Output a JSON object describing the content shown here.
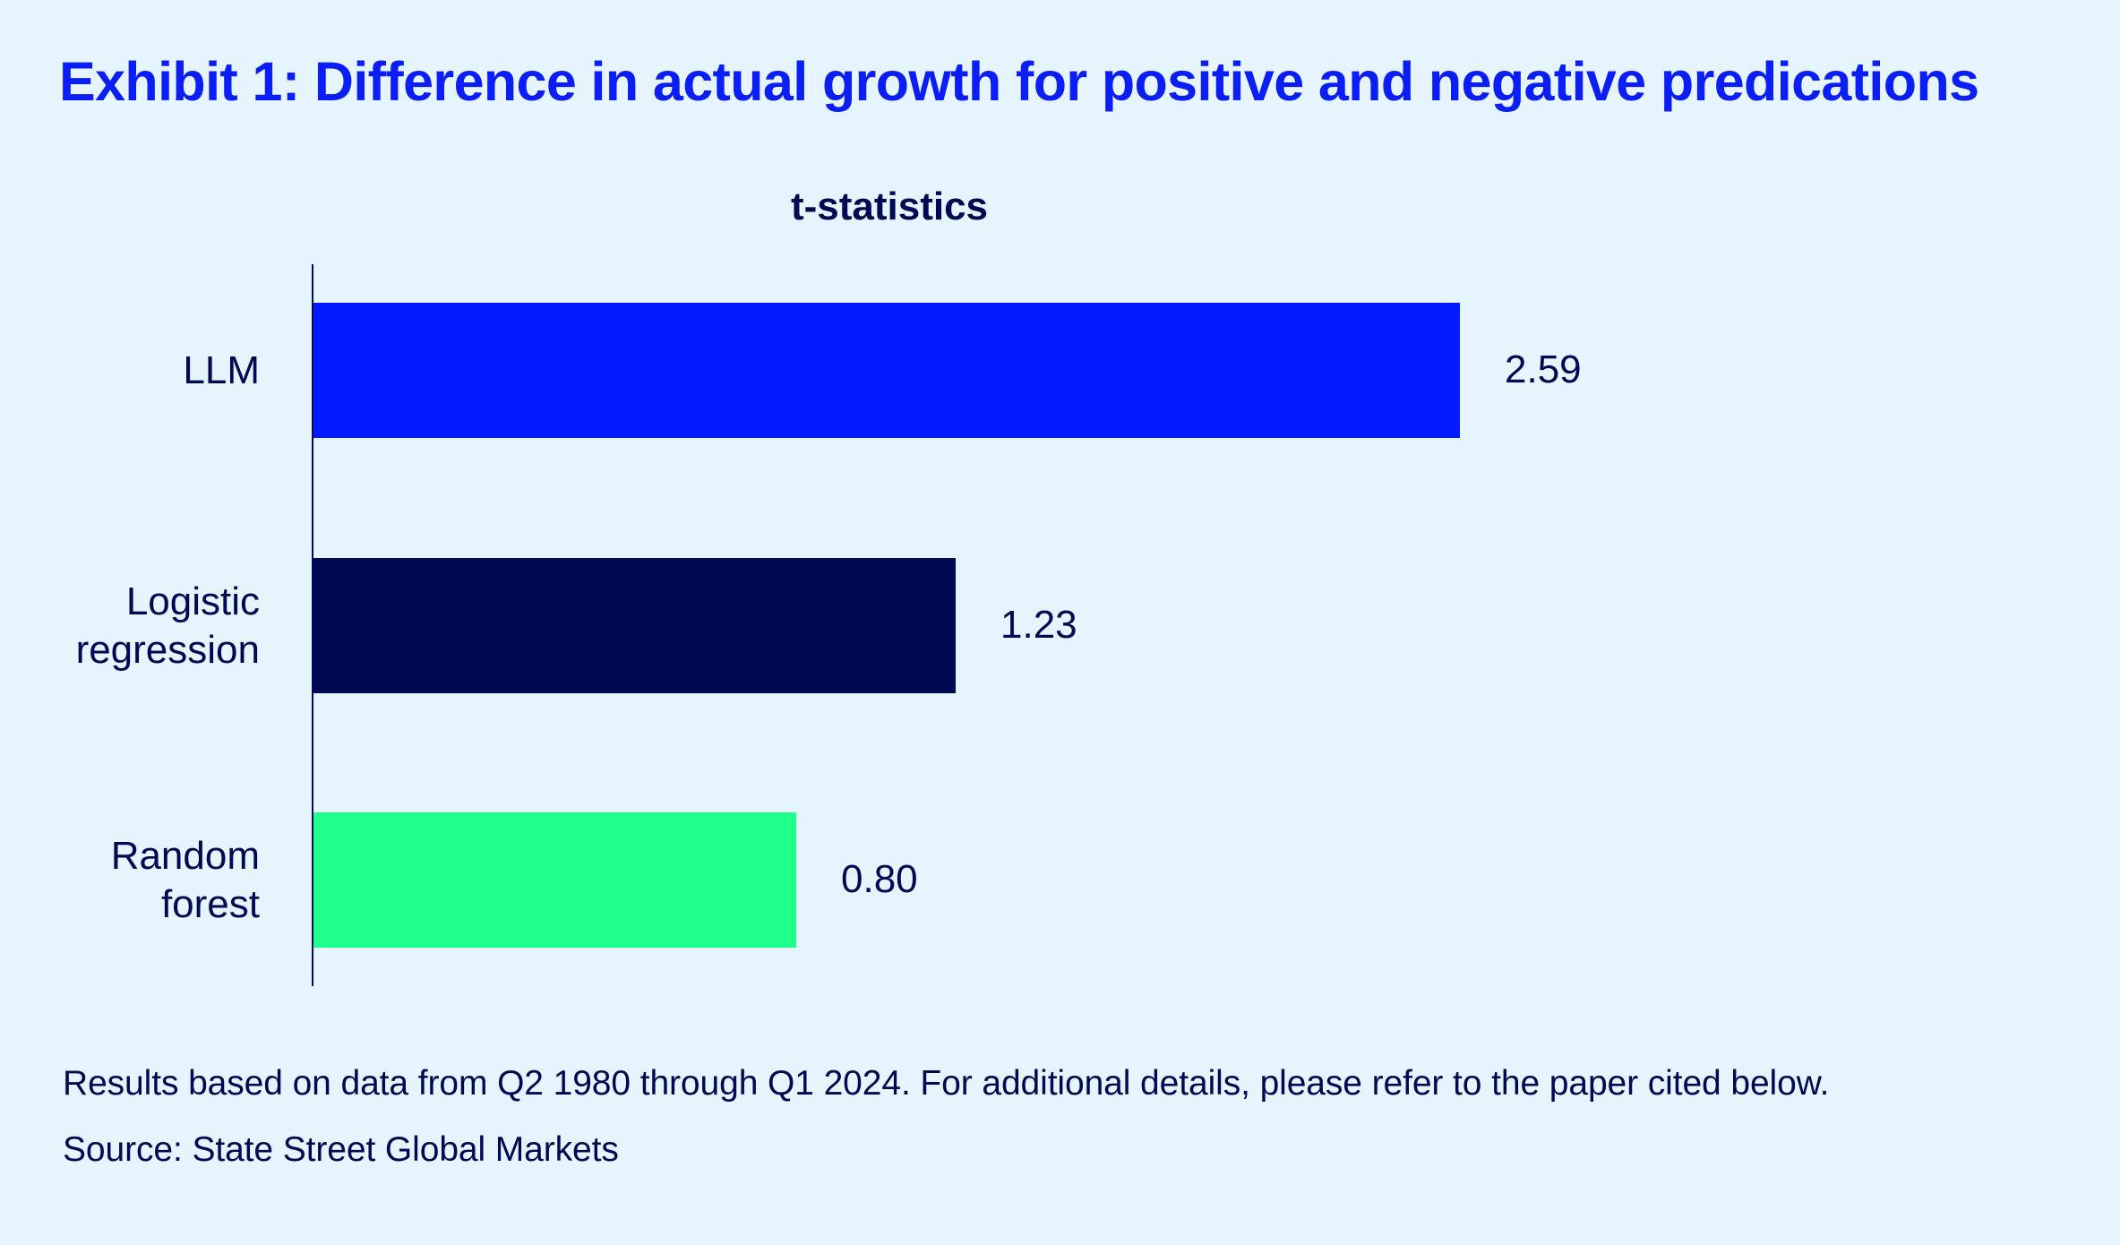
{
  "title": "Exhibit 1: Difference in actual growth for positive and negative predications",
  "footnotes": {
    "note": "Results based on data from Q2 1980 through Q1 2024. For additional details, please refer to the paper cited below.",
    "source": "Source: State Street Global Markets"
  },
  "colors": {
    "background": "#e6f4fd",
    "title": "#0a1ef5",
    "text": "#000a52"
  },
  "chart_data": {
    "type": "bar",
    "orientation": "horizontal",
    "title": "t-statistics",
    "xlabel": "",
    "ylabel": "",
    "categories": [
      "LLM",
      "Logistic\nregression",
      "Random\nforest"
    ],
    "values": [
      2.59,
      1.23,
      0.8
    ],
    "value_labels": [
      "2.59",
      "1.23",
      "0.80"
    ],
    "bar_colors": [
      "#001bff",
      "#000a52",
      "#1fff8c"
    ],
    "grid": false,
    "legend": "none"
  }
}
